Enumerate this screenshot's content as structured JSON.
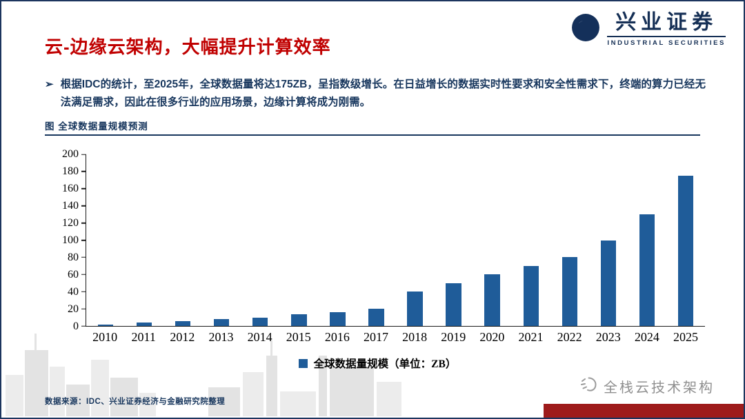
{
  "header": {
    "title": "云-边缘云架构，大幅提升计算效率",
    "logo": {
      "cn": "兴业证券",
      "en": "INDUSTRIAL SECURITIES"
    }
  },
  "body": {
    "bullet_marker": "➢",
    "paragraph": "根据IDC的统计，至2025年，全球数据量将达175ZB，呈指数级增长。在日益增长的数据实时性要求和安全性需求下，终端的算力已经无法满足需求，因此在很多行业的应用场景，边缘计算将成为刚需。"
  },
  "figure": {
    "caption": "图  全球数据量规模预测"
  },
  "chart_data": {
    "type": "bar",
    "title": "全球数据量规模预测",
    "categories": [
      "2010",
      "2011",
      "2012",
      "2013",
      "2014",
      "2015",
      "2016",
      "2017",
      "2018",
      "2019",
      "2020",
      "2021",
      "2022",
      "2023",
      "2024",
      "2025"
    ],
    "values": [
      2,
      4,
      6,
      8,
      10,
      14,
      16,
      20,
      40,
      50,
      60,
      70,
      80,
      100,
      130,
      175
    ],
    "xlabel": "",
    "ylabel": "",
    "ylim": [
      0,
      200
    ],
    "yticks": [
      0,
      20,
      40,
      60,
      80,
      100,
      120,
      140,
      160,
      180,
      200
    ],
    "grid": false,
    "bar_color": "#1f5c99",
    "legend": [
      "全球数据量规模（单位：ZB）"
    ],
    "legend_position": "bottom"
  },
  "footer": {
    "source": "数据来源：IDC、兴业证券经济与金融研究院整理",
    "watermark": "全栈云技术架构"
  },
  "colors": {
    "title_red": "#c00000",
    "body_navy": "#17365d",
    "bar_blue": "#1f5c99",
    "corner_red": "#9e1b1b",
    "border_navy": "#1c355e"
  }
}
